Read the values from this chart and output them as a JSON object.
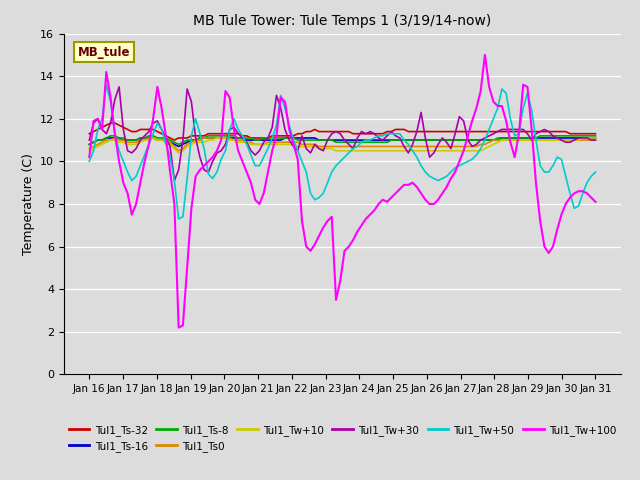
{
  "title": "MB Tule Tower: Tule Temps 1 (3/19/14-now)",
  "ylabel": "Temperature (C)",
  "ylim": [
    0,
    16
  ],
  "yticks": [
    0,
    2,
    4,
    6,
    8,
    10,
    12,
    14,
    16
  ],
  "background_color": "#dcdcdc",
  "plot_bg_color": "#dcdcdc",
  "annotation_text": "MB_tule",
  "annotation_bg": "#ffffcc",
  "annotation_border": "#999900",
  "annotation_text_color": "#660000",
  "xtick_labels": [
    "Jan 16",
    "Jan 17",
    "Jan 18",
    "Jan 19",
    "Jan 20",
    "Jan 21",
    "Jan 22",
    "Jan 23",
    "Jan 24",
    "Jan 25",
    "Jan 26",
    "Jan 27",
    "Jan 28",
    "Jan 29",
    "Jan 30",
    "Jan 31"
  ],
  "series": {
    "Tul1_Ts-32": {
      "color": "#cc0000",
      "lw": 1.2,
      "data": [
        11.3,
        11.4,
        11.5,
        11.6,
        11.7,
        11.8,
        11.8,
        11.7,
        11.6,
        11.5,
        11.4,
        11.4,
        11.5,
        11.5,
        11.5,
        11.5,
        11.4,
        11.3,
        11.2,
        11.1,
        11.0,
        11.1,
        11.1,
        11.1,
        11.2,
        11.2,
        11.2,
        11.2,
        11.3,
        11.3,
        11.3,
        11.3,
        11.3,
        11.3,
        11.3,
        11.3,
        11.2,
        11.2,
        11.1,
        11.1,
        11.1,
        11.1,
        11.1,
        11.2,
        11.2,
        11.2,
        11.2,
        11.2,
        11.2,
        11.3,
        11.3,
        11.4,
        11.4,
        11.5,
        11.4,
        11.4,
        11.4,
        11.4,
        11.4,
        11.4,
        11.4,
        11.4,
        11.3,
        11.3,
        11.3,
        11.3,
        11.3,
        11.3,
        11.3,
        11.3,
        11.4,
        11.4,
        11.5,
        11.5,
        11.5,
        11.4,
        11.4,
        11.4,
        11.4,
        11.4,
        11.4,
        11.4,
        11.4,
        11.4,
        11.4,
        11.4,
        11.4,
        11.4,
        11.4,
        11.4,
        11.4,
        11.4,
        11.4,
        11.4,
        11.4,
        11.4,
        11.4,
        11.4,
        11.4,
        11.4,
        11.4,
        11.4,
        11.4,
        11.4,
        11.4,
        11.4,
        11.4,
        11.4,
        11.4,
        11.4,
        11.4,
        11.4,
        11.4,
        11.3,
        11.3,
        11.3,
        11.3,
        11.3,
        11.3,
        11.3
      ]
    },
    "Tul1_Ts-16": {
      "color": "#0000cc",
      "lw": 1.2,
      "data": [
        10.8,
        10.9,
        11.0,
        11.0,
        11.1,
        11.1,
        11.1,
        11.1,
        11.0,
        11.0,
        11.0,
        11.0,
        11.1,
        11.1,
        11.1,
        11.1,
        11.0,
        11.0,
        11.0,
        10.9,
        10.8,
        10.7,
        10.8,
        10.9,
        11.0,
        11.0,
        11.1,
        11.1,
        11.1,
        11.1,
        11.1,
        11.1,
        11.1,
        11.1,
        11.1,
        11.1,
        11.1,
        11.0,
        11.0,
        11.0,
        11.0,
        11.0,
        11.0,
        11.0,
        11.0,
        11.0,
        11.1,
        11.1,
        11.1,
        11.1,
        11.1,
        11.1,
        11.1,
        11.1,
        11.0,
        11.0,
        11.0,
        11.0,
        11.0,
        11.0,
        11.0,
        11.0,
        11.0,
        11.0,
        11.0,
        11.0,
        11.0,
        11.0,
        11.0,
        11.0,
        11.0,
        11.0,
        11.0,
        11.0,
        11.0,
        11.0,
        11.0,
        11.0,
        11.0,
        11.0,
        11.0,
        11.0,
        11.0,
        11.0,
        11.0,
        11.0,
        11.0,
        11.0,
        11.0,
        11.0,
        11.0,
        11.0,
        11.0,
        11.0,
        11.0,
        11.0,
        11.0,
        11.1,
        11.1,
        11.1,
        11.1,
        11.1,
        11.1,
        11.1,
        11.1,
        11.1,
        11.1,
        11.1,
        11.1,
        11.1,
        11.1,
        11.1,
        11.1,
        11.1,
        11.1,
        11.1,
        11.1,
        11.1,
        11.1,
        11.1
      ]
    },
    "Tul1_Ts-8": {
      "color": "#00aa00",
      "lw": 1.2,
      "data": [
        10.8,
        10.9,
        11.0,
        11.0,
        11.1,
        11.2,
        11.2,
        11.1,
        11.1,
        11.0,
        11.0,
        11.0,
        11.1,
        11.1,
        11.2,
        11.2,
        11.1,
        11.1,
        11.1,
        11.0,
        10.9,
        10.8,
        10.9,
        11.0,
        11.0,
        11.0,
        11.1,
        11.1,
        11.2,
        11.2,
        11.2,
        11.2,
        11.2,
        11.2,
        11.2,
        11.1,
        11.1,
        11.1,
        11.1,
        11.0,
        11.0,
        11.1,
        11.1,
        11.1,
        11.1,
        11.1,
        11.1,
        11.1,
        11.1,
        11.0,
        11.0,
        11.0,
        11.0,
        11.0,
        11.0,
        11.0,
        11.0,
        11.0,
        10.9,
        10.9,
        10.9,
        10.9,
        10.9,
        10.9,
        10.9,
        10.9,
        10.9,
        10.9,
        10.9,
        10.9,
        10.9,
        11.0,
        11.0,
        11.0,
        11.0,
        11.0,
        11.0,
        11.0,
        11.0,
        11.0,
        11.0,
        11.0,
        11.0,
        11.0,
        11.0,
        11.0,
        11.0,
        11.0,
        11.0,
        11.0,
        11.0,
        11.0,
        11.0,
        11.0,
        11.0,
        11.0,
        11.1,
        11.1,
        11.1,
        11.1,
        11.1,
        11.1,
        11.1,
        11.1,
        11.1,
        11.1,
        11.2,
        11.2,
        11.2,
        11.2,
        11.2,
        11.2,
        11.2,
        11.2,
        11.2,
        11.2,
        11.2,
        11.2,
        11.2,
        11.2
      ]
    },
    "Tul1_Ts0": {
      "color": "#dd8800",
      "lw": 1.2,
      "data": [
        10.6,
        10.7,
        10.8,
        10.9,
        11.0,
        11.0,
        11.1,
        11.0,
        11.0,
        10.9,
        10.9,
        10.9,
        11.0,
        11.0,
        11.1,
        11.1,
        11.0,
        11.0,
        11.0,
        10.9,
        10.7,
        10.5,
        10.6,
        10.8,
        10.9,
        11.0,
        11.0,
        11.1,
        11.1,
        11.1,
        11.1,
        11.1,
        11.1,
        11.1,
        11.0,
        11.0,
        11.0,
        10.9,
        10.9,
        10.8,
        10.8,
        10.8,
        10.9,
        10.9,
        10.9,
        10.9,
        10.9,
        10.9,
        10.9,
        10.9,
        10.8,
        10.8,
        10.8,
        10.8,
        10.7,
        10.7,
        10.7,
        10.7,
        10.7,
        10.7,
        10.7,
        10.7,
        10.7,
        10.7,
        10.7,
        10.7,
        10.7,
        10.7,
        10.7,
        10.7,
        10.7,
        10.7,
        10.7,
        10.7,
        10.7,
        10.7,
        10.7,
        10.7,
        10.7,
        10.7,
        10.7,
        10.7,
        10.7,
        10.7,
        10.7,
        10.7,
        10.7,
        10.7,
        10.7,
        10.7,
        10.7,
        10.7,
        10.8,
        10.8,
        10.9,
        11.0,
        11.0,
        11.0,
        11.0,
        11.0,
        11.0,
        11.0,
        11.0,
        11.0,
        11.0,
        11.0,
        11.0,
        11.0,
        11.0,
        11.0,
        11.0,
        11.0,
        11.0,
        11.0,
        11.0,
        11.0,
        11.0,
        11.0,
        11.0,
        11.0
      ]
    },
    "Tul1_Tw+10": {
      "color": "#cccc00",
      "lw": 1.2,
      "data": [
        10.5,
        10.6,
        10.7,
        10.8,
        10.9,
        11.0,
        11.0,
        10.9,
        10.9,
        10.8,
        10.8,
        10.8,
        10.9,
        11.0,
        11.0,
        11.1,
        11.0,
        11.0,
        10.9,
        10.8,
        10.6,
        10.4,
        10.5,
        10.7,
        10.8,
        10.9,
        10.9,
        10.9,
        11.0,
        11.0,
        11.1,
        11.1,
        11.1,
        11.0,
        11.0,
        10.9,
        10.9,
        10.9,
        10.8,
        10.8,
        10.8,
        10.8,
        10.8,
        10.8,
        10.8,
        10.8,
        10.8,
        10.8,
        10.8,
        10.7,
        10.7,
        10.7,
        10.7,
        10.7,
        10.6,
        10.6,
        10.6,
        10.6,
        10.5,
        10.5,
        10.5,
        10.5,
        10.5,
        10.5,
        10.5,
        10.5,
        10.5,
        10.5,
        10.5,
        10.5,
        10.5,
        10.5,
        10.5,
        10.5,
        10.5,
        10.5,
        10.5,
        10.5,
        10.5,
        10.5,
        10.5,
        10.5,
        10.5,
        10.5,
        10.5,
        10.5,
        10.5,
        10.5,
        10.5,
        10.5,
        10.5,
        10.5,
        10.5,
        10.6,
        10.7,
        10.8,
        10.9,
        11.0,
        11.0,
        11.0,
        11.0,
        11.0,
        11.0,
        11.0,
        11.0,
        11.0,
        11.0,
        11.0,
        11.0,
        11.0,
        11.0,
        11.0,
        11.0,
        11.0,
        11.0,
        11.0,
        11.1,
        11.1,
        11.1,
        11.1
      ]
    },
    "Tul1_Tw+30": {
      "color": "#aa00aa",
      "lw": 1.2,
      "data": [
        11.0,
        11.8,
        12.0,
        11.5,
        11.3,
        11.8,
        12.9,
        13.5,
        11.5,
        10.5,
        10.4,
        10.6,
        11.0,
        11.2,
        11.4,
        11.8,
        11.9,
        11.5,
        11.1,
        10.7,
        9.1,
        9.6,
        11.0,
        13.4,
        12.8,
        11.1,
        10.2,
        9.6,
        9.5,
        10.0,
        10.4,
        10.5,
        10.8,
        11.5,
        11.6,
        11.3,
        11.1,
        10.9,
        10.5,
        10.3,
        10.5,
        10.9,
        11.1,
        11.6,
        13.1,
        12.5,
        11.5,
        11.0,
        10.7,
        10.5,
        11.2,
        10.6,
        10.4,
        10.8,
        10.6,
        10.5,
        11.0,
        11.3,
        11.4,
        11.3,
        11.0,
        10.8,
        10.6,
        11.1,
        11.4,
        11.3,
        11.4,
        11.3,
        11.1,
        11.0,
        11.2,
        11.4,
        11.2,
        11.1,
        10.7,
        10.4,
        10.8,
        11.4,
        12.3,
        11.1,
        10.2,
        10.4,
        10.8,
        11.1,
        10.9,
        10.6,
        11.3,
        12.1,
        11.9,
        11.0,
        10.7,
        10.8,
        11.0,
        11.1,
        11.2,
        11.3,
        11.4,
        11.5,
        11.5,
        11.5,
        11.5,
        11.5,
        11.5,
        11.3,
        11.0,
        11.3,
        11.4,
        11.5,
        11.4,
        11.2,
        11.1,
        11.0,
        10.9,
        10.9,
        11.0,
        11.1,
        11.1,
        11.1,
        11.0,
        11.0
      ]
    },
    "Tul1_Tw+50": {
      "color": "#00cccc",
      "lw": 1.2,
      "data": [
        10.0,
        10.5,
        11.5,
        12.0,
        13.6,
        12.8,
        11.3,
        10.5,
        10.0,
        9.5,
        9.1,
        9.3,
        9.8,
        10.3,
        10.8,
        11.3,
        11.8,
        11.5,
        10.8,
        10.2,
        9.1,
        7.3,
        7.4,
        9.2,
        11.2,
        12.0,
        11.3,
        10.6,
        9.4,
        9.2,
        9.5,
        10.1,
        10.5,
        11.5,
        12.0,
        11.5,
        11.2,
        10.8,
        10.3,
        9.8,
        9.8,
        10.2,
        10.6,
        11.1,
        11.7,
        13.1,
        12.5,
        11.7,
        11.0,
        10.5,
        10.0,
        9.5,
        8.5,
        8.2,
        8.3,
        8.5,
        9.0,
        9.5,
        9.8,
        10.0,
        10.2,
        10.4,
        10.6,
        10.7,
        10.9,
        11.0,
        11.0,
        11.1,
        11.2,
        11.2,
        11.3,
        11.3,
        11.3,
        11.3,
        11.0,
        10.8,
        10.5,
        10.2,
        9.8,
        9.5,
        9.3,
        9.2,
        9.1,
        9.2,
        9.3,
        9.5,
        9.7,
        9.8,
        9.9,
        10.0,
        10.1,
        10.3,
        10.6,
        11.0,
        11.5,
        12.0,
        12.5,
        13.4,
        13.2,
        12.0,
        11.2,
        11.3,
        12.5,
        13.2,
        12.4,
        11.0,
        9.8,
        9.5,
        9.5,
        9.8,
        10.2,
        10.1,
        9.3,
        8.5,
        7.8,
        7.9,
        8.5,
        9.0,
        9.3,
        9.5
      ]
    },
    "Tul1_Tw+100": {
      "color": "#ff00ff",
      "lw": 1.5,
      "data": [
        10.2,
        11.9,
        12.0,
        11.5,
        14.2,
        13.0,
        11.3,
        10.0,
        9.0,
        8.5,
        7.5,
        8.0,
        9.0,
        10.0,
        10.8,
        12.0,
        13.5,
        12.5,
        11.2,
        9.5,
        8.0,
        2.2,
        2.3,
        5.0,
        7.8,
        9.3,
        9.6,
        9.8,
        10.0,
        10.2,
        10.5,
        11.0,
        13.3,
        13.0,
        11.5,
        10.5,
        10.0,
        9.5,
        9.0,
        8.2,
        8.0,
        8.5,
        9.5,
        10.5,
        11.2,
        13.0,
        12.8,
        11.5,
        10.8,
        10.1,
        7.2,
        6.0,
        5.8,
        6.1,
        6.5,
        6.9,
        7.2,
        7.4,
        3.5,
        4.4,
        5.8,
        6.0,
        6.3,
        6.7,
        7.0,
        7.3,
        7.5,
        7.7,
        8.0,
        8.2,
        8.1,
        8.3,
        8.5,
        8.7,
        8.9,
        8.9,
        9.0,
        8.8,
        8.5,
        8.2,
        8.0,
        8.0,
        8.2,
        8.5,
        8.8,
        9.2,
        9.5,
        10.0,
        10.5,
        11.2,
        11.9,
        12.5,
        13.3,
        15.0,
        13.5,
        12.8,
        12.6,
        12.6,
        11.9,
        10.9,
        10.2,
        11.3,
        13.6,
        13.5,
        11.5,
        9.0,
        7.2,
        6.0,
        5.7,
        6.0,
        6.8,
        7.5,
        8.0,
        8.3,
        8.5,
        8.6,
        8.6,
        8.5,
        8.3,
        8.1
      ]
    }
  }
}
